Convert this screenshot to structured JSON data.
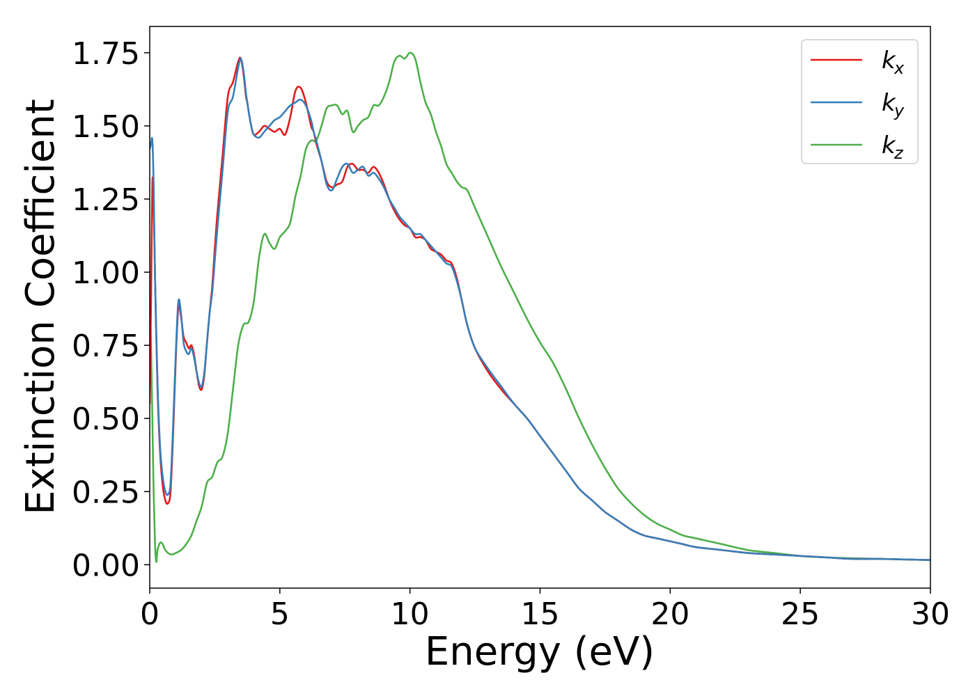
{
  "chart_data": {
    "type": "line",
    "title": "",
    "xlabel": "Energy (eV)",
    "ylabel": "Extinction Coefficient",
    "xlim": [
      0,
      30
    ],
    "ylim": [
      -0.08,
      1.84
    ],
    "xticks": [
      0,
      5,
      10,
      15,
      20,
      25,
      30
    ],
    "xtick_labels": [
      "0",
      "5",
      "10",
      "15",
      "20",
      "25",
      "30"
    ],
    "yticks": [
      0.0,
      0.25,
      0.5,
      0.75,
      1.0,
      1.25,
      1.5,
      1.75
    ],
    "ytick_labels": [
      "0.00",
      "0.25",
      "0.50",
      "0.75",
      "1.00",
      "1.25",
      "1.50",
      "1.75"
    ],
    "grid": false,
    "legend_position": "top-right",
    "series": [
      {
        "name": "kx",
        "legend_base": "k",
        "legend_sub": "x",
        "color": "#e41a1c",
        "x": [
          0,
          0.05,
          0.1,
          0.15,
          0.2,
          0.3,
          0.4,
          0.5,
          0.6,
          0.7,
          0.8,
          0.9,
          1.0,
          1.1,
          1.2,
          1.3,
          1.4,
          1.5,
          1.6,
          1.7,
          1.8,
          1.9,
          2.0,
          2.1,
          2.2,
          2.3,
          2.4,
          2.5,
          2.6,
          2.8,
          3.0,
          3.2,
          3.4,
          3.5,
          3.6,
          3.7,
          3.75,
          3.8,
          3.9,
          4.0,
          4.2,
          4.4,
          4.6,
          4.8,
          5.0,
          5.2,
          5.4,
          5.6,
          5.8,
          6.0,
          6.2,
          6.3,
          6.4,
          6.6,
          6.8,
          7.0,
          7.2,
          7.4,
          7.6,
          7.8,
          8.0,
          8.2,
          8.4,
          8.6,
          8.8,
          9.0,
          9.2,
          9.4,
          9.6,
          9.8,
          10.0,
          10.2,
          10.4,
          10.6,
          10.8,
          11.0,
          11.2,
          11.4,
          11.6,
          11.8,
          12.0,
          12.2,
          12.5,
          13.0,
          13.5,
          14.0,
          14.5,
          15.0,
          15.5,
          16.0,
          16.5,
          17.0,
          17.5,
          18.0,
          18.5,
          19.0,
          19.5,
          20.0,
          20.5,
          21.0,
          22.0,
          23.0,
          24.0,
          25.0,
          26.0,
          27.0,
          28.0,
          29.0,
          30.0
        ],
        "y": [
          0.55,
          0.9,
          1.3,
          1.25,
          1.0,
          0.6,
          0.38,
          0.27,
          0.22,
          0.21,
          0.25,
          0.45,
          0.7,
          0.88,
          0.85,
          0.78,
          0.76,
          0.74,
          0.75,
          0.72,
          0.66,
          0.61,
          0.6,
          0.65,
          0.76,
          0.86,
          0.95,
          1.08,
          1.2,
          1.4,
          1.6,
          1.65,
          1.72,
          1.73,
          1.68,
          1.6,
          1.58,
          1.55,
          1.5,
          1.47,
          1.48,
          1.5,
          1.49,
          1.48,
          1.49,
          1.47,
          1.53,
          1.62,
          1.63,
          1.58,
          1.5,
          1.48,
          1.44,
          1.38,
          1.31,
          1.29,
          1.3,
          1.31,
          1.36,
          1.37,
          1.35,
          1.35,
          1.34,
          1.36,
          1.34,
          1.3,
          1.25,
          1.21,
          1.18,
          1.16,
          1.15,
          1.12,
          1.12,
          1.11,
          1.08,
          1.07,
          1.06,
          1.04,
          1.03,
          0.98,
          0.9,
          0.82,
          0.74,
          0.66,
          0.6,
          0.55,
          0.5,
          0.44,
          0.38,
          0.32,
          0.26,
          0.22,
          0.18,
          0.15,
          0.12,
          0.1,
          0.09,
          0.08,
          0.07,
          0.06,
          0.05,
          0.04,
          0.035,
          0.03,
          0.025,
          0.02,
          0.02,
          0.018,
          0.016
        ]
      },
      {
        "name": "ky",
        "legend_base": "k",
        "legend_sub": "y",
        "color": "#377eb8",
        "x": [
          0,
          0.05,
          0.1,
          0.15,
          0.2,
          0.3,
          0.4,
          0.5,
          0.6,
          0.7,
          0.8,
          0.9,
          1.0,
          1.1,
          1.2,
          1.3,
          1.4,
          1.5,
          1.6,
          1.7,
          1.8,
          1.9,
          2.0,
          2.1,
          2.2,
          2.3,
          2.4,
          2.5,
          2.6,
          2.8,
          3.0,
          3.2,
          3.4,
          3.5,
          3.6,
          3.7,
          3.75,
          3.8,
          3.9,
          4.0,
          4.2,
          4.4,
          4.6,
          4.8,
          5.0,
          5.2,
          5.4,
          5.6,
          5.8,
          6.0,
          6.2,
          6.3,
          6.4,
          6.6,
          6.8,
          7.0,
          7.2,
          7.4,
          7.6,
          7.8,
          8.0,
          8.2,
          8.4,
          8.6,
          8.8,
          9.0,
          9.2,
          9.4,
          9.6,
          9.8,
          10.0,
          10.2,
          10.4,
          10.6,
          10.8,
          11.0,
          11.2,
          11.4,
          11.6,
          11.8,
          12.0,
          12.2,
          12.5,
          13.0,
          13.5,
          14.0,
          14.5,
          15.0,
          15.5,
          16.0,
          16.5,
          17.0,
          17.5,
          18.0,
          18.5,
          19.0,
          19.5,
          20.0,
          20.5,
          21.0,
          22.0,
          23.0,
          24.0,
          25.0,
          26.0,
          27.0,
          28.0,
          29.0,
          30.0
        ],
        "y": [
          1.42,
          1.44,
          1.45,
          1.3,
          1.0,
          0.62,
          0.4,
          0.3,
          0.25,
          0.24,
          0.28,
          0.48,
          0.72,
          0.9,
          0.86,
          0.76,
          0.73,
          0.72,
          0.74,
          0.71,
          0.66,
          0.62,
          0.61,
          0.66,
          0.76,
          0.86,
          0.93,
          1.04,
          1.15,
          1.35,
          1.55,
          1.6,
          1.7,
          1.73,
          1.69,
          1.61,
          1.58,
          1.55,
          1.5,
          1.47,
          1.46,
          1.48,
          1.5,
          1.52,
          1.53,
          1.55,
          1.57,
          1.58,
          1.59,
          1.57,
          1.52,
          1.48,
          1.45,
          1.38,
          1.3,
          1.28,
          1.32,
          1.36,
          1.37,
          1.34,
          1.35,
          1.36,
          1.33,
          1.34,
          1.32,
          1.29,
          1.25,
          1.22,
          1.19,
          1.17,
          1.15,
          1.13,
          1.13,
          1.11,
          1.09,
          1.07,
          1.05,
          1.03,
          1.02,
          0.97,
          0.9,
          0.82,
          0.74,
          0.67,
          0.61,
          0.55,
          0.5,
          0.44,
          0.38,
          0.32,
          0.26,
          0.22,
          0.18,
          0.15,
          0.12,
          0.1,
          0.09,
          0.08,
          0.07,
          0.06,
          0.05,
          0.04,
          0.035,
          0.03,
          0.025,
          0.02,
          0.02,
          0.018,
          0.016
        ]
      },
      {
        "name": "kz",
        "legend_base": "k",
        "legend_sub": "z",
        "color": "#4daf4a",
        "x": [
          0,
          0.05,
          0.1,
          0.15,
          0.2,
          0.25,
          0.3,
          0.4,
          0.5,
          0.6,
          0.8,
          1.0,
          1.2,
          1.4,
          1.6,
          1.8,
          2.0,
          2.2,
          2.4,
          2.6,
          2.8,
          3.0,
          3.2,
          3.4,
          3.6,
          3.8,
          4.0,
          4.2,
          4.4,
          4.6,
          4.8,
          5.0,
          5.2,
          5.4,
          5.6,
          5.8,
          6.0,
          6.2,
          6.4,
          6.6,
          6.8,
          7.0,
          7.2,
          7.4,
          7.6,
          7.8,
          8.0,
          8.2,
          8.4,
          8.6,
          8.8,
          9.0,
          9.2,
          9.4,
          9.6,
          9.8,
          10.0,
          10.2,
          10.4,
          10.6,
          10.8,
          11.0,
          11.2,
          11.4,
          11.6,
          11.8,
          12.0,
          12.2,
          12.5,
          13.0,
          13.5,
          14.0,
          14.5,
          15.0,
          15.5,
          16.0,
          16.5,
          17.0,
          17.5,
          18.0,
          18.5,
          19.0,
          19.5,
          20.0,
          20.5,
          21.0,
          22.0,
          23.0,
          24.0,
          25.0,
          26.0,
          27.0,
          28.0,
          29.0,
          30.0
        ],
        "y": [
          0.9,
          0.75,
          0.5,
          0.25,
          0.08,
          0.01,
          0.05,
          0.075,
          0.07,
          0.05,
          0.035,
          0.04,
          0.05,
          0.07,
          0.1,
          0.15,
          0.2,
          0.28,
          0.3,
          0.35,
          0.37,
          0.45,
          0.6,
          0.75,
          0.82,
          0.83,
          0.9,
          1.05,
          1.13,
          1.1,
          1.08,
          1.12,
          1.14,
          1.17,
          1.26,
          1.33,
          1.42,
          1.45,
          1.45,
          1.5,
          1.56,
          1.57,
          1.57,
          1.54,
          1.55,
          1.48,
          1.5,
          1.52,
          1.53,
          1.57,
          1.57,
          1.6,
          1.65,
          1.72,
          1.74,
          1.73,
          1.75,
          1.73,
          1.65,
          1.58,
          1.54,
          1.48,
          1.43,
          1.37,
          1.34,
          1.31,
          1.29,
          1.28,
          1.22,
          1.12,
          1.02,
          0.93,
          0.84,
          0.76,
          0.69,
          0.6,
          0.5,
          0.41,
          0.33,
          0.26,
          0.21,
          0.17,
          0.14,
          0.12,
          0.1,
          0.09,
          0.07,
          0.05,
          0.04,
          0.03,
          0.025,
          0.022,
          0.02,
          0.018,
          0.016
        ]
      }
    ]
  }
}
